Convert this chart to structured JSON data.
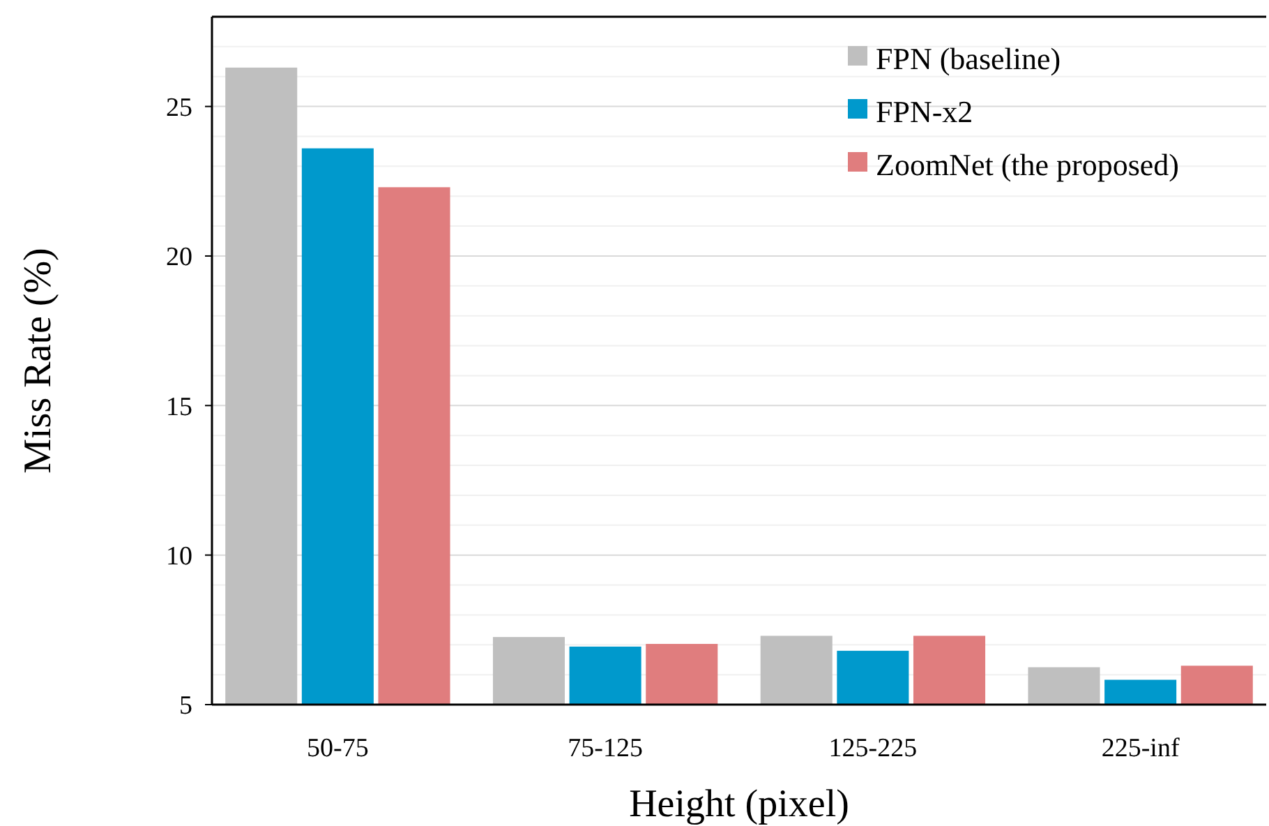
{
  "chart_data": {
    "type": "bar",
    "xlabel": "Height (pixel)",
    "ylabel": "Miss Rate (%)",
    "categories": [
      "50-75",
      "75-125",
      "125-225",
      "225-inf"
    ],
    "series": [
      {
        "name": "FPN (baseline)",
        "color": "#bfbfbf",
        "values": [
          26.3,
          7.26,
          7.3,
          6.25
        ]
      },
      {
        "name": "FPN-x2",
        "color": "#0099cc",
        "values": [
          23.6,
          6.94,
          6.8,
          5.83
        ]
      },
      {
        "name": "ZoomNet (the proposed)",
        "color": "#e07d7e",
        "values": [
          22.3,
          7.03,
          7.3,
          6.3
        ]
      }
    ],
    "ylim": [
      5,
      28
    ],
    "yticks": [
      5,
      {
        "value": 6,
        "label": null
      },
      {
        "value": 7,
        "label": null
      },
      {
        "value": 8,
        "label": null
      },
      {
        "value": 9,
        "label": null
      },
      10,
      {
        "value": 11,
        "label": null
      },
      {
        "value": 12,
        "label": null
      },
      {
        "value": 13,
        "label": null
      },
      {
        "value": 14,
        "label": null
      },
      15,
      {
        "value": 16,
        "label": null
      },
      {
        "value": 17,
        "label": null
      },
      {
        "value": 18,
        "label": null
      },
      {
        "value": 19,
        "label": null
      },
      20,
      {
        "value": 21,
        "label": null
      },
      {
        "value": 22,
        "label": null
      },
      {
        "value": 23,
        "label": null
      },
      {
        "value": 24,
        "label": null
      },
      25,
      {
        "value": 26,
        "label": null
      },
      {
        "value": 27,
        "label": null
      }
    ],
    "grid": "y",
    "legend": "top right"
  }
}
